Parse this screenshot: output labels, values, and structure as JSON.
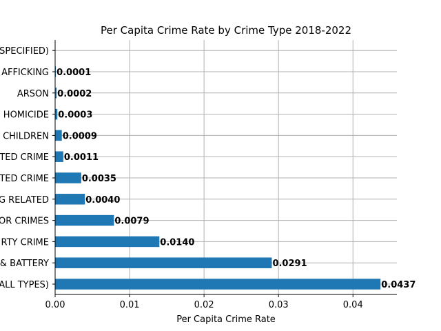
{
  "chart_data": {
    "type": "bar",
    "orientation": "horizontal",
    "title": "Per Capita Crime Rate by Crime Type 2018-2022",
    "xlabel": "Per Capita Crime Rate",
    "ylabel": "",
    "xlim": [
      0,
      0.0459
    ],
    "xticks": [
      0,
      0.01,
      0.02,
      0.03,
      0.04
    ],
    "xtick_labels": [
      "0.00",
      "0.01",
      "0.02",
      "0.03",
      "0.04"
    ],
    "grid": true,
    "bar_color": "#1f77b4",
    "categories": [
      "(ALL TYPES)",
      "& BATTERY",
      "RTY CRIME",
      "OR CRIMES",
      "G RELATED",
      "TED CRIME",
      "TED CRIME",
      "CHILDREN",
      "HOMICIDE",
      "ARSON",
      "AFFICKING",
      "SPECIFIED)"
    ],
    "values": [
      0.0437,
      0.0291,
      0.014,
      0.0079,
      0.004,
      0.0035,
      0.0011,
      0.0009,
      0.0003,
      0.0002,
      0.0001,
      0.0
    ],
    "value_labels": [
      "0.0437",
      "0.0291",
      "0.0140",
      "0.0079",
      "0.0040",
      "0.0035",
      "0.0011",
      "0.0009",
      "0.0003",
      "0.0002",
      "0.0001",
      ""
    ]
  }
}
